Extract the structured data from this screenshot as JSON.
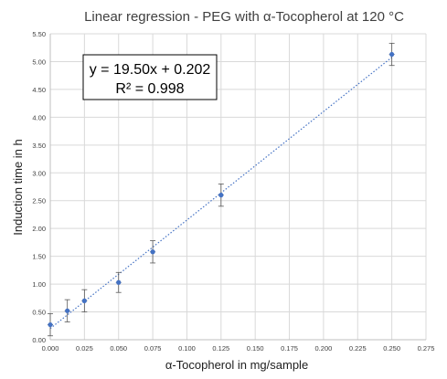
{
  "chart_data": {
    "type": "scatter",
    "title": "Linear regression - PEG with α-Tocopherol at 120 °C",
    "xlabel": "α-Tocopherol in mg/sample",
    "ylabel": "Induction time in h",
    "xlim": [
      0,
      0.275
    ],
    "ylim": [
      0,
      5.5
    ],
    "x_ticks": [
      "0.000",
      "0.025",
      "0.050",
      "0.075",
      "0.100",
      "0.125",
      "0.150",
      "0.175",
      "0.200",
      "0.225",
      "0.250",
      "0.275"
    ],
    "y_ticks": [
      "0.00",
      "0.50",
      "1.00",
      "1.50",
      "2.00",
      "2.50",
      "3.00",
      "3.50",
      "4.00",
      "4.50",
      "5.00",
      "5.50"
    ],
    "grid": true,
    "series": [
      {
        "x": [
          0.0,
          0.0125,
          0.025,
          0.05,
          0.075,
          0.125,
          0.25
        ],
        "y": [
          0.27,
          0.52,
          0.7,
          1.03,
          1.58,
          2.6,
          5.13
        ],
        "y_error": [
          0.2,
          0.2,
          0.2,
          0.18,
          0.2,
          0.2,
          0.2
        ],
        "x_error": [
          0.002,
          0.002,
          0.002,
          0.002,
          0.002,
          0.002,
          0.002
        ],
        "color": "#4472c4"
      }
    ],
    "trendline": {
      "type": "linear",
      "slope": 19.5,
      "intercept": 0.202,
      "style": "dotted",
      "color": "#4472c4"
    },
    "annotation": {
      "line1": "y = 19.50x + 0.202",
      "line2": "R² = 0.998"
    }
  }
}
